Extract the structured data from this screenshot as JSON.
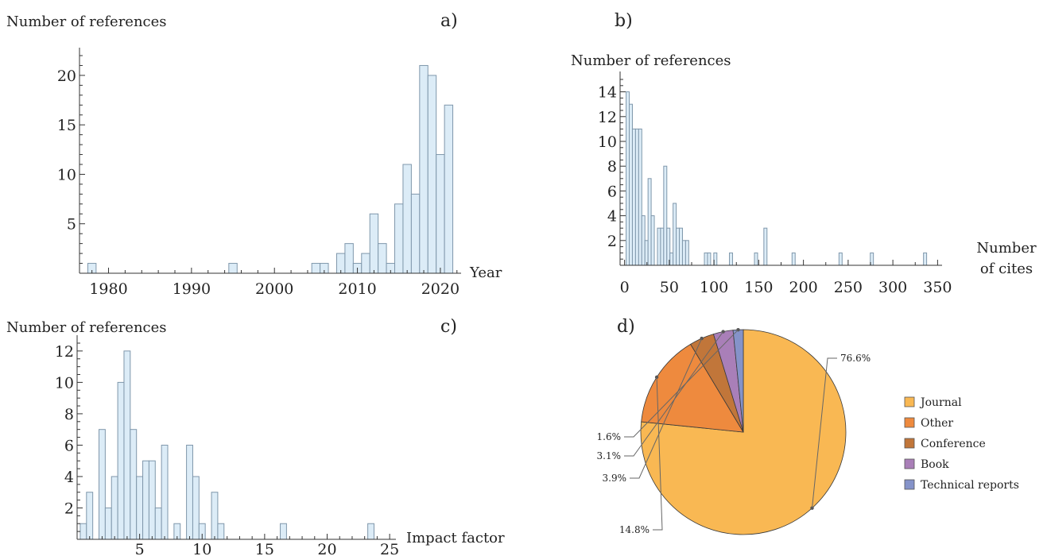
{
  "chart_data": [
    {
      "id": "a",
      "type": "bar",
      "panel_label": "a)",
      "ylabel": "Number of references",
      "xlabel": "Year",
      "xlim": [
        1976.5,
        2022.5
      ],
      "ylim": [
        0,
        22
      ],
      "xticks": [
        1980,
        1990,
        2000,
        2010,
        2020
      ],
      "yticks": [
        5,
        10,
        15,
        20
      ],
      "bin_width": 1,
      "bins": [
        {
          "x": 1978,
          "y": 1
        },
        {
          "x": 1995,
          "y": 1
        },
        {
          "x": 2005,
          "y": 1
        },
        {
          "x": 2006,
          "y": 1
        },
        {
          "x": 2008,
          "y": 2
        },
        {
          "x": 2009,
          "y": 3
        },
        {
          "x": 2010,
          "y": 1
        },
        {
          "x": 2011,
          "y": 2
        },
        {
          "x": 2012,
          "y": 6
        },
        {
          "x": 2013,
          "y": 3
        },
        {
          "x": 2014,
          "y": 1
        },
        {
          "x": 2015,
          "y": 7
        },
        {
          "x": 2016,
          "y": 11
        },
        {
          "x": 2017,
          "y": 8
        },
        {
          "x": 2018,
          "y": 21
        },
        {
          "x": 2019,
          "y": 20
        },
        {
          "x": 2020,
          "y": 12
        },
        {
          "x": 2021,
          "y": 17
        }
      ]
    },
    {
      "id": "b",
      "type": "bar",
      "panel_label": "b)",
      "ylabel": "Number of references",
      "xlabel": [
        "Number",
        "of cites"
      ],
      "xlim": [
        -5,
        355
      ],
      "ylim": [
        0,
        15
      ],
      "xticks": [
        0,
        50,
        100,
        150,
        200,
        250,
        300,
        350
      ],
      "yticks": [
        2,
        4,
        6,
        8,
        10,
        12,
        14
      ],
      "bin_width": 3.5,
      "bins": [
        {
          "x": 3.5,
          "y": 14
        },
        {
          "x": 7,
          "y": 13
        },
        {
          "x": 10.5,
          "y": 11
        },
        {
          "x": 14,
          "y": 11
        },
        {
          "x": 17.5,
          "y": 11
        },
        {
          "x": 21,
          "y": 4
        },
        {
          "x": 24.5,
          "y": 2
        },
        {
          "x": 28,
          "y": 7
        },
        {
          "x": 31.5,
          "y": 4
        },
        {
          "x": 38.5,
          "y": 3
        },
        {
          "x": 42,
          "y": 3
        },
        {
          "x": 45.5,
          "y": 8
        },
        {
          "x": 49,
          "y": 3
        },
        {
          "x": 52.5,
          "y": 1
        },
        {
          "x": 56,
          "y": 5
        },
        {
          "x": 59.5,
          "y": 3
        },
        {
          "x": 63,
          "y": 3
        },
        {
          "x": 66.5,
          "y": 2
        },
        {
          "x": 70,
          "y": 2
        },
        {
          "x": 91,
          "y": 1
        },
        {
          "x": 94.5,
          "y": 1
        },
        {
          "x": 101.5,
          "y": 1
        },
        {
          "x": 119,
          "y": 1
        },
        {
          "x": 147,
          "y": 1
        },
        {
          "x": 157.5,
          "y": 3
        },
        {
          "x": 189,
          "y": 1
        },
        {
          "x": 241.5,
          "y": 1
        },
        {
          "x": 276.5,
          "y": 1
        },
        {
          "x": 336,
          "y": 1
        }
      ]
    },
    {
      "id": "c",
      "type": "bar",
      "panel_label": "c)",
      "ylabel": "Number of references",
      "xlabel": "Impact factor",
      "xlim": [
        0,
        25.5
      ],
      "ylim": [
        0,
        12.5
      ],
      "xticks": [
        5,
        10,
        15,
        20,
        25
      ],
      "yticks": [
        2,
        4,
        6,
        8,
        10,
        12
      ],
      "bin_width": 0.5,
      "bins": [
        {
          "x": 0.5,
          "y": 1
        },
        {
          "x": 1,
          "y": 3
        },
        {
          "x": 2,
          "y": 7
        },
        {
          "x": 2.5,
          "y": 2
        },
        {
          "x": 3,
          "y": 4
        },
        {
          "x": 3.5,
          "y": 10
        },
        {
          "x": 4,
          "y": 12
        },
        {
          "x": 4.5,
          "y": 7
        },
        {
          "x": 5,
          "y": 4
        },
        {
          "x": 5.5,
          "y": 5
        },
        {
          "x": 6,
          "y": 5
        },
        {
          "x": 6.5,
          "y": 2
        },
        {
          "x": 7,
          "y": 6
        },
        {
          "x": 8,
          "y": 1
        },
        {
          "x": 9,
          "y": 6
        },
        {
          "x": 9.5,
          "y": 4
        },
        {
          "x": 10,
          "y": 1
        },
        {
          "x": 11,
          "y": 3
        },
        {
          "x": 11.5,
          "y": 1
        },
        {
          "x": 16.5,
          "y": 1
        },
        {
          "x": 23.5,
          "y": 1
        }
      ]
    },
    {
      "id": "d",
      "type": "pie",
      "panel_label": "d)",
      "slices": [
        {
          "name": "Journal",
          "value": 76.6,
          "label": "76.6%",
          "color": "#f9b853"
        },
        {
          "name": "Other",
          "value": 14.8,
          "label": "14.8%",
          "color": "#ee8a3e"
        },
        {
          "name": "Conference",
          "value": 3.9,
          "label": "3.9%",
          "color": "#c1763a"
        },
        {
          "name": "Book",
          "value": 3.1,
          "label": "3.1%",
          "color": "#a97fb8"
        },
        {
          "name": "Technical reports",
          "value": 1.6,
          "label": "1.6%",
          "color": "#8593c9"
        }
      ],
      "legend_placement": "right"
    }
  ]
}
